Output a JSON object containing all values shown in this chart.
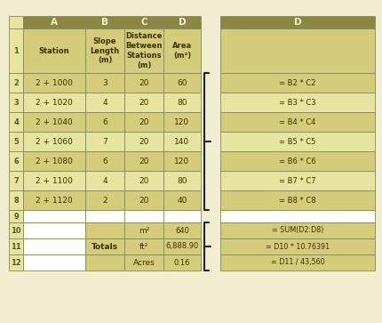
{
  "header_color": "#8B8642",
  "cell_tan": "#D4CC7A",
  "cell_light": "#E8E4A0",
  "cell_white": "#FFFFFF",
  "bg_color": "#F0EDD0",
  "border_color": "#888855",
  "txt_color": "#3A3000",
  "hdr_txt_color": "#F5F0D0",
  "col_headers": [
    "A",
    "B",
    "C",
    "D"
  ],
  "row1_headers": [
    "Station",
    "Slope\nLength\n(m)",
    "Distance\nBetween\nStations\n(m)",
    "Area\n(m²)"
  ],
  "stations": [
    "2 + 1000",
    "2 + 1020",
    "2 + 1040",
    "2 + 1060",
    "2 + 1080",
    "2 + 1100",
    "2 + 1120"
  ],
  "slope_lengths": [
    "3",
    "4",
    "6",
    "7",
    "6",
    "4",
    "2"
  ],
  "distances": [
    "20",
    "20",
    "20",
    "20",
    "20",
    "20",
    "20"
  ],
  "areas": [
    "60",
    "80",
    "120",
    "140",
    "120",
    "80",
    "40"
  ],
  "formulas": [
    "= B2 * C2",
    "= B3 * C3",
    "= B4 * C4",
    "= B5 * C5",
    "= B6 * C6",
    "= B7 * C7",
    "= B8 * C8"
  ],
  "totals_label": "Totals",
  "units": [
    "m²",
    "ft²",
    "Acres"
  ],
  "total_values": [
    "640",
    "6,888.90",
    "0.16"
  ],
  "total_formulas": [
    "= SUM(D2:D8)",
    "= D10 * 10.76391",
    "= D11 / 43,560"
  ],
  "brace_color": "#222222"
}
